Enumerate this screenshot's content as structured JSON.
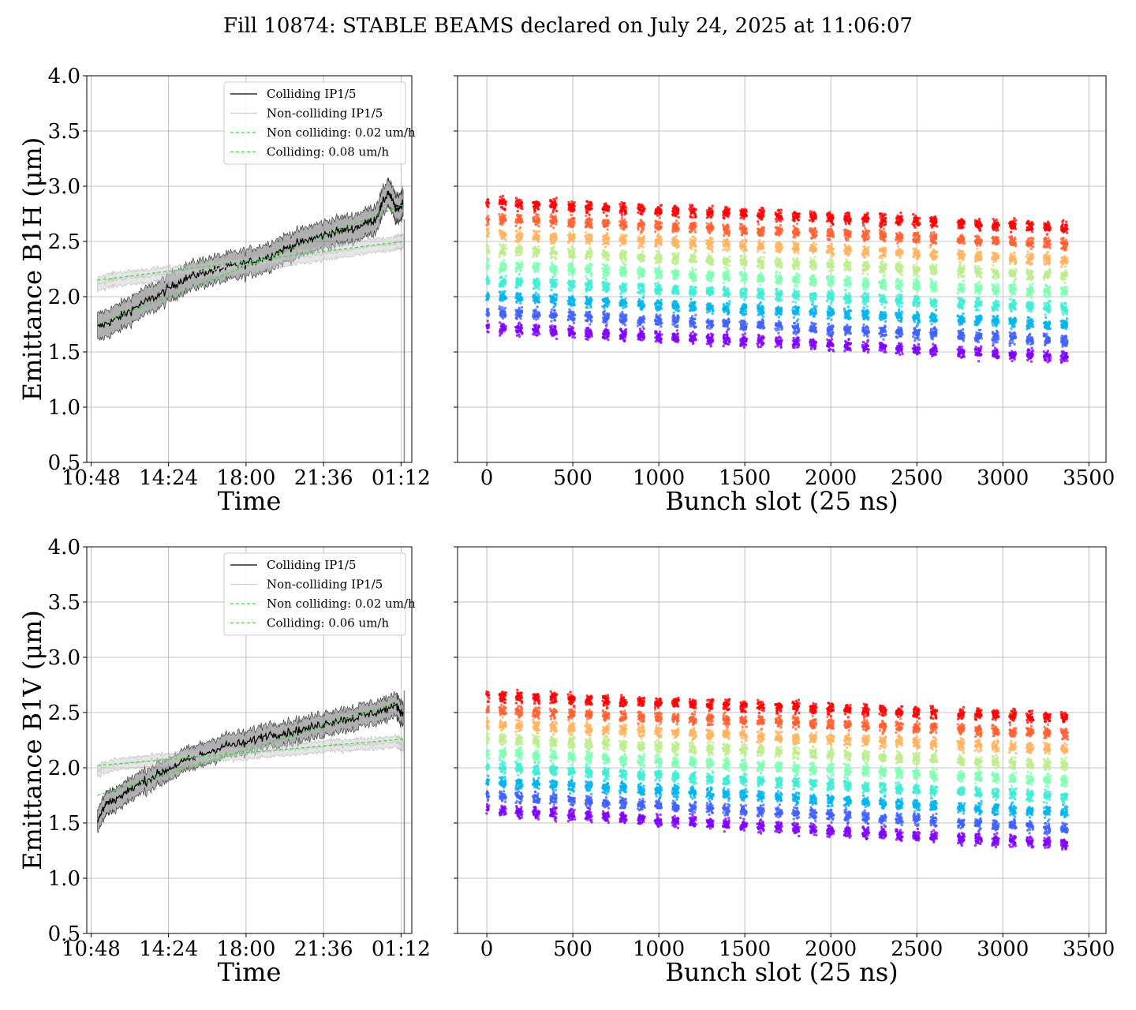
{
  "figure": {
    "title": "Fill 10874: STABLE BEAMS declared on July 24, 2025 at 11:06:07"
  },
  "chart_data": [
    {
      "type": "line",
      "panel": "top-left",
      "ylabel": "Emittance B1H (μm)",
      "xlabel": "Time",
      "ylim": [
        0.5,
        4.0
      ],
      "yticks": [
        "0.5",
        "1.0",
        "1.5",
        "2.0",
        "2.5",
        "3.0",
        "3.5",
        "4.0"
      ],
      "xticks": [
        "10:48",
        "14:24",
        "18:00",
        "21:36",
        "01:12"
      ],
      "xlim_hours": [
        10.6,
        25.7
      ],
      "grid": true,
      "legend_position": "upper-right",
      "legend": [
        "Colliding IP1/5",
        "Non-colliding IP1/5",
        "Non colliding: 0.02 um/h",
        "Colliding: 0.08 um/h"
      ],
      "series": [
        {
          "name": "Colliding IP1/5",
          "color": "#000000",
          "x_hours": [
            11.1,
            12.0,
            13.0,
            14.0,
            15.0,
            16.0,
            17.0,
            18.0,
            19.0,
            20.0,
            21.0,
            22.0,
            23.0,
            24.0,
            24.6,
            25.0,
            25.3
          ],
          "y": [
            1.72,
            1.8,
            1.92,
            2.02,
            2.15,
            2.22,
            2.26,
            2.3,
            2.36,
            2.45,
            2.52,
            2.58,
            2.62,
            2.7,
            2.95,
            2.78,
            2.85
          ],
          "band": 0.12
        },
        {
          "name": "Non-colliding IP1/5",
          "color": "#c8c8c8",
          "x_hours": [
            11.1,
            12.0,
            13.0,
            14.0,
            15.0,
            16.0,
            17.0,
            18.0,
            19.0,
            20.0,
            21.0,
            22.0,
            23.0,
            24.0,
            25.0,
            25.3
          ],
          "y": [
            2.12,
            2.16,
            2.18,
            2.2,
            2.22,
            2.24,
            2.26,
            2.28,
            2.31,
            2.34,
            2.37,
            2.4,
            2.43,
            2.46,
            2.49,
            2.5
          ],
          "band": 0.06
        },
        {
          "name": "Non colliding: 0.02 um/h",
          "color": "#33dd33",
          "dashed": true,
          "x_hours": [
            11.1,
            25.3
          ],
          "y": [
            2.15,
            2.5
          ]
        },
        {
          "name": "Colliding: 0.08 um/h",
          "color": "#33dd33",
          "dashed": true,
          "x_hours": [
            11.1,
            25.3
          ],
          "y": [
            1.75,
            2.83
          ]
        }
      ]
    },
    {
      "type": "scatter",
      "panel": "top-right",
      "xlabel": "Bunch slot (25 ns)",
      "xlim": [
        -170,
        3600
      ],
      "ylim": [
        0.5,
        4.0
      ],
      "xticks": [
        "0",
        "500",
        "1000",
        "1500",
        "2000",
        "2500",
        "3000",
        "3500"
      ],
      "grid": true,
      "colormap": "rainbow",
      "train_starts": [
        0,
        75,
        170,
        270,
        370,
        475,
        575,
        675,
        775,
        880,
        980,
        1080,
        1180,
        1280,
        1375,
        1475,
        1575,
        1680,
        1780,
        1880,
        1980,
        2080,
        2185,
        2285,
        2380,
        2480,
        2580,
        2740,
        2840,
        2940,
        3040,
        3140,
        3240,
        3340
      ],
      "y_min_start": 1.72,
      "y_min_end": 1.45,
      "y_max_start": 2.85,
      "y_max_end": 2.62
    },
    {
      "type": "line",
      "panel": "bottom-left",
      "ylabel": "Emittance B1V (μm)",
      "xlabel": "Time",
      "ylim": [
        0.5,
        4.0
      ],
      "yticks": [
        "0.5",
        "1.0",
        "1.5",
        "2.0",
        "2.5",
        "3.0",
        "3.5",
        "4.0"
      ],
      "xticks": [
        "10:48",
        "14:24",
        "18:00",
        "21:36",
        "01:12"
      ],
      "xlim_hours": [
        10.6,
        25.7
      ],
      "grid": true,
      "legend_position": "upper-right",
      "legend": [
        "Colliding IP1/5",
        "Non-colliding IP1/5",
        "Non colliding: 0.02 um/h",
        "Colliding: 0.06 um/h"
      ],
      "series": [
        {
          "name": "Colliding IP1/5",
          "color": "#000000",
          "x_hours": [
            11.1,
            11.5,
            12.0,
            13.0,
            14.0,
            15.0,
            16.0,
            17.0,
            18.0,
            19.0,
            20.0,
            21.0,
            22.0,
            23.0,
            24.0,
            25.0,
            25.3
          ],
          "y": [
            1.52,
            1.68,
            1.72,
            1.85,
            1.95,
            2.05,
            2.12,
            2.2,
            2.22,
            2.3,
            2.32,
            2.36,
            2.42,
            2.45,
            2.5,
            2.56,
            2.48
          ],
          "band": 0.1
        },
        {
          "name": "Non-colliding IP1/5",
          "color": "#c8c8c8",
          "x_hours": [
            11.1,
            12.0,
            13.0,
            14.0,
            15.0,
            16.0,
            17.0,
            18.0,
            19.0,
            20.0,
            21.0,
            22.0,
            23.0,
            24.0,
            25.0,
            25.3
          ],
          "y": [
            1.98,
            2.03,
            2.05,
            2.07,
            2.09,
            2.1,
            2.12,
            2.13,
            2.15,
            2.16,
            2.18,
            2.2,
            2.21,
            2.22,
            2.24,
            2.2
          ],
          "band": 0.05
        },
        {
          "name": "Non colliding: 0.02 um/h",
          "color": "#33dd33",
          "dashed": true,
          "x_hours": [
            11.1,
            25.3
          ],
          "y": [
            2.02,
            2.26
          ]
        },
        {
          "name": "Colliding: 0.06 um/h",
          "color": "#33dd33",
          "dashed": true,
          "x_hours": [
            11.1,
            25.3
          ],
          "y": [
            1.75,
            2.6
          ]
        }
      ]
    },
    {
      "type": "scatter",
      "panel": "bottom-right",
      "xlabel": "Bunch slot (25 ns)",
      "xlim": [
        -170,
        3600
      ],
      "ylim": [
        0.5,
        4.0
      ],
      "xticks": [
        "0",
        "500",
        "1000",
        "1500",
        "2000",
        "2500",
        "3000",
        "3500"
      ],
      "grid": true,
      "colormap": "rainbow",
      "train_starts": [
        0,
        75,
        170,
        270,
        370,
        475,
        575,
        675,
        775,
        880,
        980,
        1080,
        1180,
        1280,
        1375,
        1475,
        1575,
        1680,
        1780,
        1880,
        1980,
        2080,
        2185,
        2285,
        2380,
        2480,
        2580,
        2740,
        2840,
        2940,
        3040,
        3140,
        3240,
        3340
      ],
      "y_min_start": 1.62,
      "y_min_end": 1.3,
      "y_max_start": 2.65,
      "y_max_end": 2.45
    }
  ]
}
